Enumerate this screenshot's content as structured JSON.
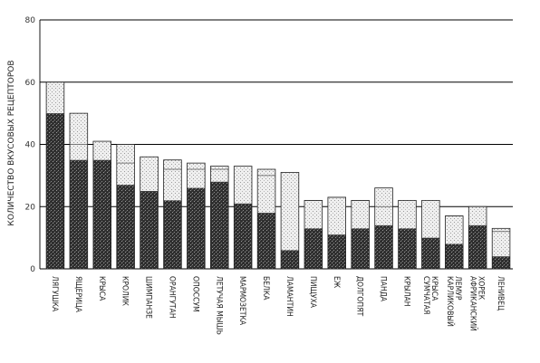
{
  "chart_data": {
    "type": "bar",
    "stacked": true,
    "ylabel": "КОЛИЧЕСТВО ВКУСОВЫХ РЕЦЕПТОРОВ",
    "ylim": [
      0,
      80
    ],
    "yticks": [
      0,
      20,
      40,
      60,
      80
    ],
    "grid": "horizontal",
    "legend": "none",
    "colors": {
      "dark": "#3a3a3a",
      "light": "#e6e6e6",
      "grid": "#000000"
    },
    "categories": [
      [
        "ЛЯГУШКА"
      ],
      [
        "ЯЩЕРИЦА"
      ],
      [
        "КРЫСА"
      ],
      [
        "КРОЛИК"
      ],
      [
        "ШИМПАНЗЕ"
      ],
      [
        "ОРАНГУТАН"
      ],
      [
        "ОПОССУМ"
      ],
      [
        "ЛЕТУЧАЯ МЫШЬ"
      ],
      [
        "МАРМОЗЕТКА"
      ],
      [
        "БЕЛКА"
      ],
      [
        "ЛАМАНТИН"
      ],
      [
        "ПИЩУХА"
      ],
      [
        "ЕЖ"
      ],
      [
        "ДОЛГОПЯТ"
      ],
      [
        "ПАНДА"
      ],
      [
        "КРЫЛАН"
      ],
      [
        "СУМЧАТАЯ",
        "КРЫСА"
      ],
      [
        "КАРЛИКОВЫЙ",
        "ЛЕМУР"
      ],
      [
        "АФРИКАНСКИЙ",
        "ХОРЕК"
      ],
      [
        "ЛЕНИВЕЦ"
      ]
    ],
    "series": [
      {
        "values": [
          50,
          35,
          35,
          27,
          25,
          22,
          26,
          28,
          21,
          18,
          6,
          13,
          11,
          13,
          14,
          13,
          10,
          8,
          14,
          4
        ]
      },
      {
        "values": [
          10,
          15,
          6,
          13,
          11,
          13,
          8,
          5,
          12,
          14,
          25,
          9,
          12,
          9,
          12,
          9,
          12,
          9,
          6,
          9
        ]
      }
    ],
    "segment_lines": [
      [],
      [
        40
      ],
      [],
      [
        34
      ],
      [],
      [
        32
      ],
      [
        32
      ],
      [
        32
      ],
      [],
      [
        30
      ],
      [],
      [
        22
      ],
      [
        23
      ],
      [
        22
      ],
      [
        20
      ],
      [],
      [],
      [
        17
      ],
      [],
      [
        12
      ]
    ]
  }
}
